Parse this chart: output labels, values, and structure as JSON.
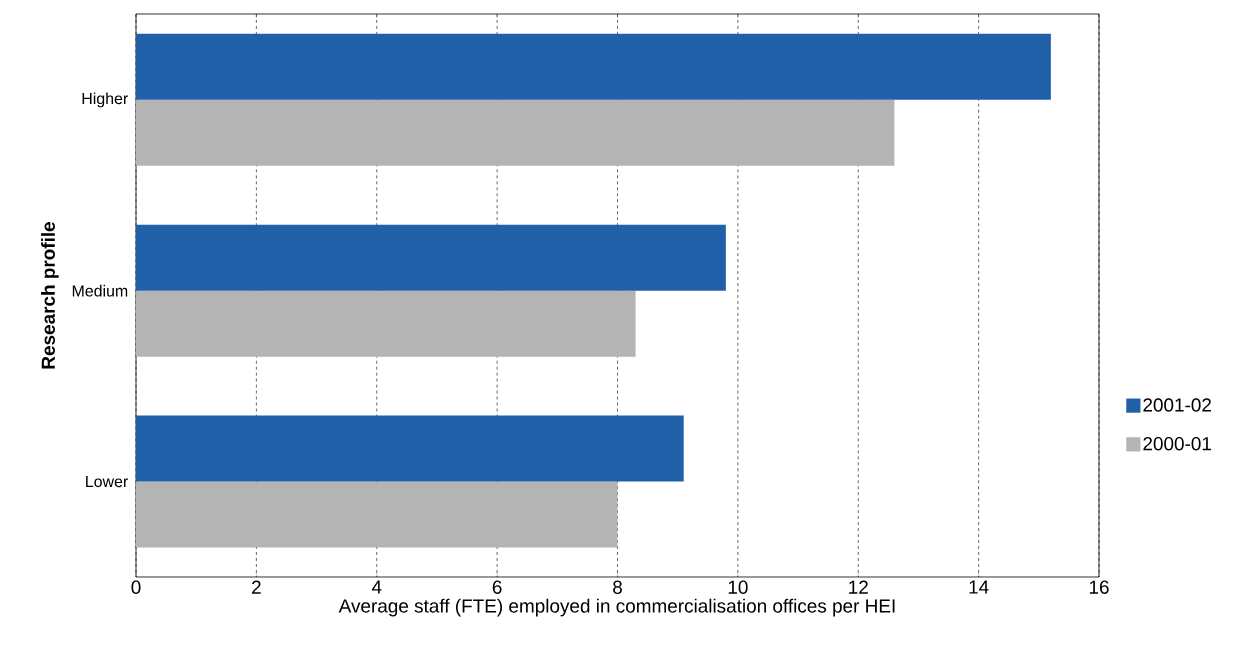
{
  "chart_data": {
    "type": "bar",
    "orientation": "horizontal",
    "xlabel": "Average staff (FTE) employed in commercialisation offices per HEI",
    "ylabel": "Research profile",
    "categories": [
      "Higher",
      "Medium",
      "Lower"
    ],
    "series": [
      {
        "name": "2001-02",
        "color": "#2060a8",
        "values": [
          15.2,
          9.8,
          9.1
        ]
      },
      {
        "name": "2000-01",
        "color": "#b4b4b4",
        "values": [
          12.6,
          8.3,
          8.0
        ]
      }
    ],
    "xlim": [
      0,
      16
    ],
    "xticks": [
      0,
      2,
      4,
      6,
      8,
      10,
      12,
      14,
      16
    ],
    "grid": "x",
    "legend": "right"
  }
}
